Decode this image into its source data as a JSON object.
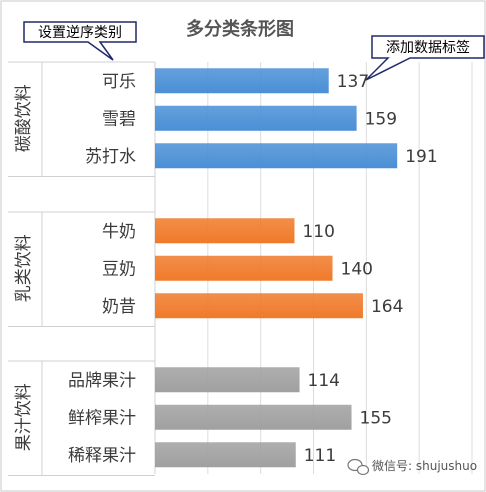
{
  "chart_data": {
    "type": "bar",
    "orientation": "horizontal",
    "title": "多分类条形图",
    "xlim": [
      0,
      250
    ],
    "grid": true,
    "groups": [
      {
        "name": "碳酸饮料",
        "color": "#4a8fd6",
        "items": [
          {
            "category": "可乐",
            "value": 137
          },
          {
            "category": "雪碧",
            "value": 159
          },
          {
            "category": "苏打水",
            "value": 191
          }
        ]
      },
      {
        "name": "乳类饮料",
        "color": "#f07a2a",
        "items": [
          {
            "category": "牛奶",
            "value": 110
          },
          {
            "category": "豆奶",
            "value": 140
          },
          {
            "category": "奶昔",
            "value": 164
          }
        ]
      },
      {
        "name": "果汁饮料",
        "color": "#a0a0a0",
        "items": [
          {
            "category": "品牌果汁",
            "value": 114
          },
          {
            "category": "鲜榨果汁",
            "value": 155
          },
          {
            "category": "稀释果汁",
            "value": 111
          }
        ]
      }
    ]
  },
  "annotations": {
    "reverse_order": "设置逆序类别",
    "data_labels": "添加数据标签"
  },
  "watermark": {
    "text": "微信号: shujushuo",
    "icon": "wechat-icon"
  }
}
